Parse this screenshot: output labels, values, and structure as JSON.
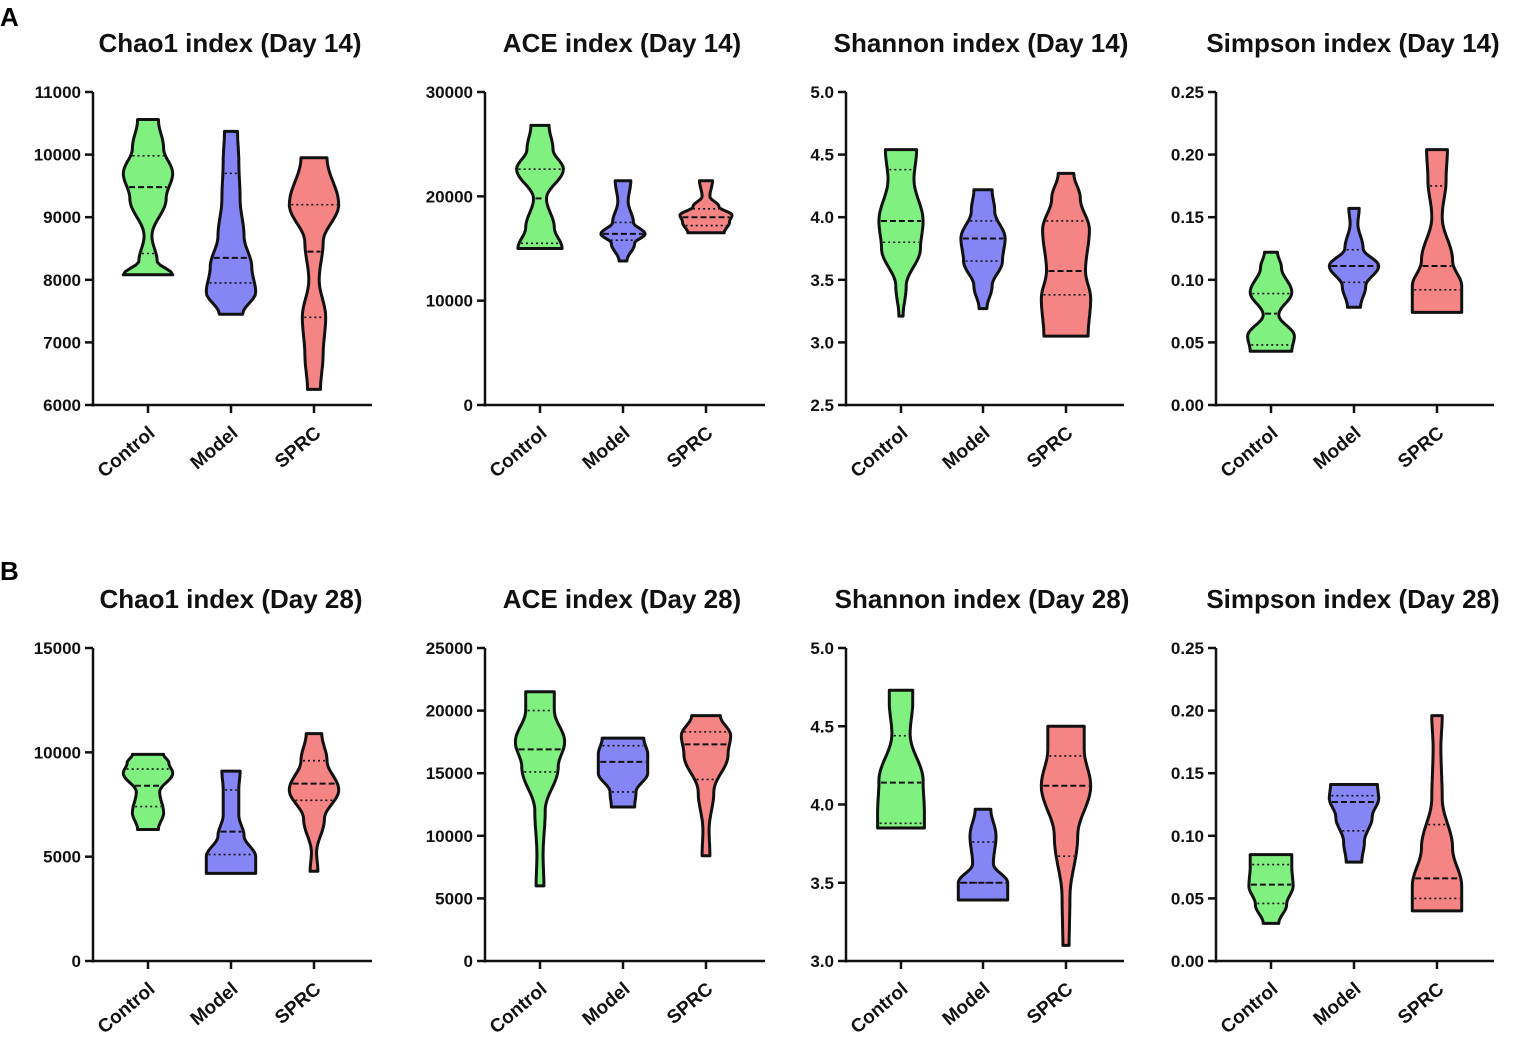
{
  "panel_labels": [
    "A",
    "B"
  ],
  "colors": {
    "Control": "#80f080",
    "Model": "#8585f5",
    "SPRC": "#f58585",
    "stroke": "#111111"
  },
  "chart_data": [
    {
      "type": "violin",
      "title": "Chao1 index (Day 14)",
      "categories": [
        "Control",
        "Model",
        "SPRC"
      ],
      "ylim": [
        6000,
        11000
      ],
      "yticks": [
        6000,
        7000,
        8000,
        9000,
        10000,
        11000
      ],
      "tick_labels": [
        "6000",
        "7000",
        "8000",
        "9000",
        "10000",
        "11000"
      ],
      "series": [
        {
          "name": "Control",
          "min": 8080,
          "max": 10560,
          "q1": 8420,
          "median": 9480,
          "q3": 9980,
          "shape": [
            [
              8080,
              0.95
            ],
            [
              8300,
              0.35
            ],
            [
              8700,
              0.15
            ],
            [
              9300,
              0.7
            ],
            [
              9700,
              0.95
            ],
            [
              10100,
              0.6
            ],
            [
              10560,
              0.4
            ]
          ]
        },
        {
          "name": "Model",
          "min": 7450,
          "max": 10370,
          "q1": 7950,
          "median": 8350,
          "q3": 9700,
          "shape": [
            [
              7450,
              0.45
            ],
            [
              7800,
              0.95
            ],
            [
              8200,
              0.8
            ],
            [
              8700,
              0.5
            ],
            [
              9300,
              0.35
            ],
            [
              9900,
              0.3
            ],
            [
              10370,
              0.25
            ]
          ]
        },
        {
          "name": "SPRC",
          "min": 6250,
          "max": 9950,
          "q1": 7400,
          "median": 8450,
          "q3": 9200,
          "shape": [
            [
              6250,
              0.25
            ],
            [
              6800,
              0.35
            ],
            [
              7400,
              0.45
            ],
            [
              8000,
              0.2
            ],
            [
              8600,
              0.35
            ],
            [
              9200,
              0.95
            ],
            [
              9950,
              0.5
            ]
          ]
        }
      ]
    },
    {
      "type": "violin",
      "title": "ACE index (Day 14)",
      "categories": [
        "Control",
        "Model",
        "SPRC"
      ],
      "ylim": [
        0,
        30000
      ],
      "yticks": [
        0,
        10000,
        20000,
        30000
      ],
      "tick_labels": [
        "0",
        "10000",
        "20000",
        "30000"
      ],
      "series": [
        {
          "name": "Control",
          "min": 15000,
          "max": 26800,
          "q1": 15500,
          "median": 19800,
          "q3": 22600,
          "shape": [
            [
              15000,
              0.85
            ],
            [
              17000,
              0.55
            ],
            [
              19800,
              0.25
            ],
            [
              22600,
              0.9
            ],
            [
              24500,
              0.5
            ],
            [
              26800,
              0.35
            ]
          ]
        },
        {
          "name": "Model",
          "min": 13800,
          "max": 21500,
          "q1": 15800,
          "median": 16400,
          "q3": 17500,
          "shape": [
            [
              13800,
              0.15
            ],
            [
              15500,
              0.45
            ],
            [
              16400,
              0.85
            ],
            [
              17500,
              0.4
            ],
            [
              19500,
              0.2
            ],
            [
              21500,
              0.3
            ]
          ]
        },
        {
          "name": "SPRC",
          "min": 16500,
          "max": 21500,
          "q1": 17200,
          "median": 18000,
          "q3": 18800,
          "shape": [
            [
              16500,
              0.7
            ],
            [
              17500,
              0.9
            ],
            [
              18200,
              1.0
            ],
            [
              19000,
              0.5
            ],
            [
              20000,
              0.15
            ],
            [
              21500,
              0.25
            ]
          ]
        }
      ]
    },
    {
      "type": "violin",
      "title": "Shannon index (Day 14)",
      "categories": [
        "Control",
        "Model",
        "SPRC"
      ],
      "ylim": [
        2.5,
        5.0
      ],
      "yticks": [
        2.5,
        3.0,
        3.5,
        4.0,
        4.5,
        5.0
      ],
      "tick_labels": [
        "2.5",
        "3.0",
        "3.5",
        "4.0",
        "4.5",
        "5.0"
      ],
      "series": [
        {
          "name": "Control",
          "min": 3.21,
          "max": 4.54,
          "q1": 3.8,
          "median": 3.97,
          "q3": 4.38,
          "shape": [
            [
              3.21,
              0.08
            ],
            [
              3.45,
              0.2
            ],
            [
              3.75,
              0.75
            ],
            [
              3.97,
              0.85
            ],
            [
              4.3,
              0.5
            ],
            [
              4.54,
              0.6
            ]
          ]
        },
        {
          "name": "Model",
          "min": 3.27,
          "max": 4.22,
          "q1": 3.65,
          "median": 3.83,
          "q3": 3.97,
          "shape": [
            [
              3.27,
              0.15
            ],
            [
              3.45,
              0.35
            ],
            [
              3.65,
              0.75
            ],
            [
              3.83,
              0.85
            ],
            [
              4.05,
              0.45
            ],
            [
              4.22,
              0.35
            ]
          ]
        },
        {
          "name": "SPRC",
          "min": 3.05,
          "max": 4.35,
          "q1": 3.38,
          "median": 3.57,
          "q3": 3.97,
          "shape": [
            [
              3.05,
              0.85
            ],
            [
              3.35,
              0.95
            ],
            [
              3.57,
              0.75
            ],
            [
              3.9,
              0.9
            ],
            [
              4.15,
              0.55
            ],
            [
              4.35,
              0.3
            ]
          ]
        }
      ]
    },
    {
      "type": "violin",
      "title": "Simpson index (Day 14)",
      "categories": [
        "Control",
        "Model",
        "SPRC"
      ],
      "ylim": [
        0,
        0.25
      ],
      "yticks": [
        0,
        0.05,
        0.1,
        0.15,
        0.2,
        0.25
      ],
      "tick_labels": [
        "0.00",
        "0.05",
        "0.10",
        "0.15",
        "0.20",
        "0.25"
      ],
      "series": [
        {
          "name": "Control",
          "min": 0.043,
          "max": 0.122,
          "q1": 0.048,
          "median": 0.073,
          "q3": 0.089,
          "shape": [
            [
              0.043,
              0.8
            ],
            [
              0.055,
              0.9
            ],
            [
              0.072,
              0.3
            ],
            [
              0.09,
              0.8
            ],
            [
              0.11,
              0.4
            ],
            [
              0.122,
              0.25
            ]
          ]
        },
        {
          "name": "Model",
          "min": 0.078,
          "max": 0.157,
          "q1": 0.098,
          "median": 0.111,
          "q3": 0.124,
          "shape": [
            [
              0.078,
              0.25
            ],
            [
              0.095,
              0.45
            ],
            [
              0.111,
              0.95
            ],
            [
              0.125,
              0.35
            ],
            [
              0.145,
              0.15
            ],
            [
              0.157,
              0.2
            ]
          ]
        },
        {
          "name": "SPRC",
          "min": 0.074,
          "max": 0.204,
          "q1": 0.092,
          "median": 0.111,
          "q3": 0.175,
          "shape": [
            [
              0.074,
              0.95
            ],
            [
              0.095,
              0.95
            ],
            [
              0.115,
              0.6
            ],
            [
              0.15,
              0.2
            ],
            [
              0.18,
              0.35
            ],
            [
              0.204,
              0.4
            ]
          ]
        }
      ]
    },
    {
      "type": "violin",
      "title": "Chao1 index (Day 28)",
      "categories": [
        "Control",
        "Model",
        "SPRC"
      ],
      "ylim": [
        0,
        15000
      ],
      "yticks": [
        0,
        5000,
        10000,
        15000
      ],
      "tick_labels": [
        "0",
        "5000",
        "10000",
        "15000"
      ],
      "series": [
        {
          "name": "Control",
          "min": 6300,
          "max": 9900,
          "q1": 7400,
          "median": 8400,
          "q3": 9200,
          "shape": [
            [
              6300,
              0.4
            ],
            [
              7100,
              0.6
            ],
            [
              8100,
              0.45
            ],
            [
              9000,
              0.95
            ],
            [
              9500,
              0.8
            ],
            [
              9900,
              0.6
            ]
          ]
        },
        {
          "name": "Model",
          "min": 4200,
          "max": 9100,
          "q1": 5100,
          "median": 6200,
          "q3": 8200,
          "shape": [
            [
              4200,
              0.95
            ],
            [
              5000,
              0.95
            ],
            [
              6000,
              0.5
            ],
            [
              7000,
              0.3
            ],
            [
              8200,
              0.3
            ],
            [
              9100,
              0.35
            ]
          ]
        },
        {
          "name": "SPRC",
          "min": 4300,
          "max": 10900,
          "q1": 7700,
          "median": 8500,
          "q3": 9600,
          "shape": [
            [
              4300,
              0.15
            ],
            [
              5200,
              0.1
            ],
            [
              6800,
              0.4
            ],
            [
              8200,
              0.95
            ],
            [
              9600,
              0.5
            ],
            [
              10900,
              0.3
            ]
          ]
        }
      ]
    },
    {
      "type": "violin",
      "title": "ACE index (Day 28)",
      "categories": [
        "Control",
        "Model",
        "SPRC"
      ],
      "ylim": [
        0,
        25000
      ],
      "yticks": [
        0,
        5000,
        10000,
        15000,
        20000,
        25000
      ],
      "tick_labels": [
        "0",
        "5000",
        "10000",
        "15000",
        "20000",
        "25000"
      ],
      "series": [
        {
          "name": "Control",
          "min": 6000,
          "max": 21500,
          "q1": 15100,
          "median": 16900,
          "q3": 20000,
          "shape": [
            [
              6000,
              0.15
            ],
            [
              8500,
              0.12
            ],
            [
              12000,
              0.2
            ],
            [
              15500,
              0.7
            ],
            [
              17500,
              0.95
            ],
            [
              20000,
              0.55
            ],
            [
              21500,
              0.55
            ]
          ]
        },
        {
          "name": "Model",
          "min": 12300,
          "max": 17800,
          "q1": 13500,
          "median": 15900,
          "q3": 17200,
          "shape": [
            [
              12300,
              0.45
            ],
            [
              13500,
              0.5
            ],
            [
              15000,
              0.95
            ],
            [
              16500,
              0.95
            ],
            [
              17800,
              0.8
            ]
          ]
        },
        {
          "name": "SPRC",
          "min": 8400,
          "max": 19600,
          "q1": 14500,
          "median": 17300,
          "q3": 18300,
          "shape": [
            [
              8400,
              0.15
            ],
            [
              10500,
              0.12
            ],
            [
              13500,
              0.3
            ],
            [
              16500,
              0.85
            ],
            [
              18000,
              0.95
            ],
            [
              19600,
              0.55
            ]
          ]
        }
      ]
    },
    {
      "type": "violin",
      "title": "Shannon index (Day 28)",
      "categories": [
        "Control",
        "Model",
        "SPRC"
      ],
      "ylim": [
        3.0,
        5.0
      ],
      "yticks": [
        3.0,
        3.5,
        4.0,
        4.5,
        5.0
      ],
      "tick_labels": [
        "3.0",
        "3.5",
        "4.0",
        "4.5",
        "5.0"
      ],
      "series": [
        {
          "name": "Control",
          "min": 3.85,
          "max": 4.73,
          "q1": 3.88,
          "median": 4.14,
          "q3": 4.44,
          "shape": [
            [
              3.85,
              0.9
            ],
            [
              3.95,
              0.9
            ],
            [
              4.15,
              0.85
            ],
            [
              4.45,
              0.35
            ],
            [
              4.65,
              0.45
            ],
            [
              4.73,
              0.45
            ]
          ]
        },
        {
          "name": "Model",
          "min": 3.39,
          "max": 3.97,
          "q1": 3.5,
          "median": 3.5,
          "q3": 3.76,
          "shape": [
            [
              3.39,
              0.95
            ],
            [
              3.5,
              0.95
            ],
            [
              3.62,
              0.4
            ],
            [
              3.8,
              0.5
            ],
            [
              3.97,
              0.3
            ]
          ]
        },
        {
          "name": "SPRC",
          "min": 3.1,
          "max": 4.5,
          "q1": 3.67,
          "median": 4.12,
          "q3": 4.31,
          "shape": [
            [
              3.1,
              0.12
            ],
            [
              3.4,
              0.15
            ],
            [
              3.8,
              0.45
            ],
            [
              4.12,
              0.95
            ],
            [
              4.35,
              0.7
            ],
            [
              4.5,
              0.7
            ]
          ]
        }
      ]
    },
    {
      "type": "violin",
      "title": "Simpson index (Day 28)",
      "categories": [
        "Control",
        "Model",
        "SPRC"
      ],
      "ylim": [
        0,
        0.25
      ],
      "yticks": [
        0,
        0.05,
        0.1,
        0.15,
        0.2,
        0.25
      ],
      "tick_labels": [
        "0.00",
        "0.05",
        "0.10",
        "0.15",
        "0.20",
        "0.25"
      ],
      "series": [
        {
          "name": "Control",
          "min": 0.03,
          "max": 0.085,
          "q1": 0.046,
          "median": 0.061,
          "q3": 0.077,
          "shape": [
            [
              0.03,
              0.3
            ],
            [
              0.045,
              0.6
            ],
            [
              0.06,
              0.85
            ],
            [
              0.075,
              0.8
            ],
            [
              0.085,
              0.8
            ]
          ]
        },
        {
          "name": "Model",
          "min": 0.079,
          "max": 0.141,
          "q1": 0.104,
          "median": 0.127,
          "q3": 0.132,
          "shape": [
            [
              0.079,
              0.3
            ],
            [
              0.095,
              0.4
            ],
            [
              0.115,
              0.7
            ],
            [
              0.13,
              0.95
            ],
            [
              0.141,
              0.9
            ]
          ]
        },
        {
          "name": "SPRC",
          "min": 0.04,
          "max": 0.196,
          "q1": 0.05,
          "median": 0.066,
          "q3": 0.109,
          "shape": [
            [
              0.04,
              0.95
            ],
            [
              0.06,
              0.95
            ],
            [
              0.09,
              0.6
            ],
            [
              0.13,
              0.2
            ],
            [
              0.17,
              0.15
            ],
            [
              0.196,
              0.2
            ]
          ]
        }
      ]
    }
  ]
}
